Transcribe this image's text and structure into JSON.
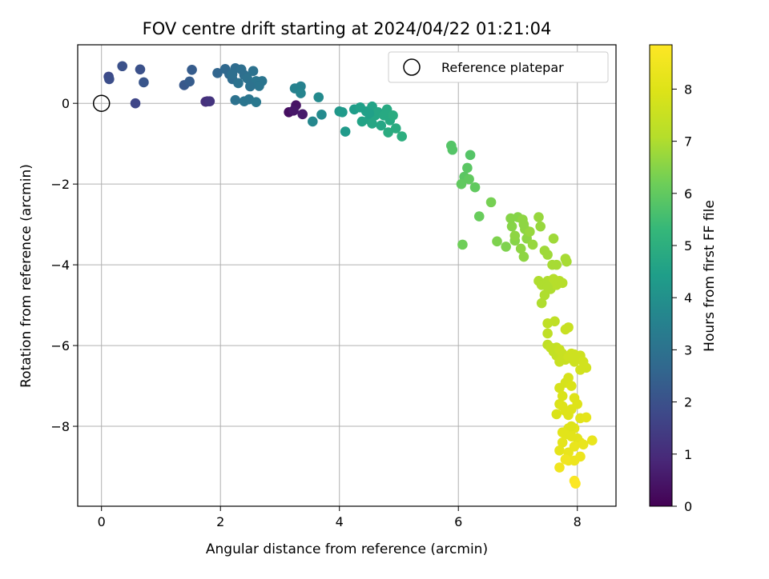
{
  "chart_data": {
    "type": "scatter",
    "title": "FOV centre drift starting at 2024/04/22 01:21:04",
    "xlabel": "Angular distance from reference (arcmin)",
    "ylabel": "Rotation from reference (arcmin)",
    "xlim": [
      -0.4,
      8.65
    ],
    "ylim": [
      -9.98,
      1.45
    ],
    "xticks": [
      0,
      2,
      4,
      6,
      8
    ],
    "yticks": [
      0,
      -2,
      -4,
      -6,
      -8
    ],
    "grid": true,
    "legend": {
      "placement": "top-right",
      "entries": [
        "Reference platepar"
      ]
    },
    "reference_point": {
      "x": 0,
      "y": 0,
      "label": "Reference platepar"
    },
    "colorbar": {
      "label": "Hours from first FF file",
      "colormap": "viridis",
      "range": [
        0,
        8.85
      ],
      "ticks": [
        0,
        1,
        2,
        3,
        4,
        5,
        6,
        7,
        8
      ]
    },
    "points": [
      [
        3.15,
        -0.22,
        0.3
      ],
      [
        3.27,
        -0.05,
        0.4
      ],
      [
        3.23,
        -0.18,
        0.5
      ],
      [
        3.38,
        -0.27,
        0.6
      ],
      [
        1.78,
        0.05,
        1.0
      ],
      [
        1.75,
        0.04,
        1.1
      ],
      [
        1.82,
        0.05,
        1.2
      ],
      [
        0.57,
        0.0,
        1.7
      ],
      [
        0.12,
        0.66,
        1.8
      ],
      [
        0.13,
        0.6,
        1.9
      ],
      [
        0.35,
        0.92,
        2.0
      ],
      [
        0.65,
        0.84,
        2.0
      ],
      [
        0.71,
        0.52,
        2.1
      ],
      [
        1.39,
        0.45,
        2.2
      ],
      [
        1.48,
        0.54,
        2.3
      ],
      [
        1.52,
        0.83,
        2.3
      ],
      [
        1.95,
        0.75,
        2.6
      ],
      [
        2.08,
        0.85,
        2.7
      ],
      [
        2.15,
        0.72,
        2.7
      ],
      [
        2.25,
        0.87,
        2.8
      ],
      [
        2.2,
        0.6,
        2.8
      ],
      [
        2.35,
        0.84,
        2.9
      ],
      [
        2.4,
        0.7,
        2.9
      ],
      [
        2.45,
        0.62,
        3.0
      ],
      [
        2.55,
        0.8,
        3.0
      ],
      [
        2.3,
        0.5,
        3.0
      ],
      [
        2.6,
        0.55,
        3.1
      ],
      [
        2.7,
        0.55,
        3.1
      ],
      [
        2.65,
        0.43,
        3.1
      ],
      [
        2.5,
        0.42,
        3.0
      ],
      [
        2.25,
        0.08,
        3.0
      ],
      [
        2.4,
        0.05,
        3.1
      ],
      [
        2.48,
        0.1,
        3.1
      ],
      [
        2.6,
        0.03,
        3.2
      ],
      [
        2.2,
        0.72,
        2.9
      ],
      [
        3.25,
        0.37,
        3.5
      ],
      [
        3.35,
        0.42,
        3.5
      ],
      [
        3.35,
        0.25,
        3.6
      ],
      [
        3.55,
        -0.45,
        3.7
      ],
      [
        3.65,
        0.15,
        3.8
      ],
      [
        3.7,
        -0.28,
        3.8
      ],
      [
        4.0,
        -0.2,
        4.2
      ],
      [
        4.05,
        -0.22,
        4.3
      ],
      [
        4.1,
        -0.7,
        4.3
      ],
      [
        4.25,
        -0.15,
        4.4
      ],
      [
        4.35,
        -0.1,
        4.5
      ],
      [
        4.45,
        -0.2,
        4.5
      ],
      [
        4.5,
        -0.4,
        4.6
      ],
      [
        4.38,
        -0.45,
        4.6
      ],
      [
        4.55,
        -0.08,
        4.6
      ],
      [
        4.6,
        -0.3,
        4.7
      ],
      [
        4.65,
        -0.22,
        4.7
      ],
      [
        4.55,
        -0.5,
        4.7
      ],
      [
        4.7,
        -0.55,
        4.7
      ],
      [
        4.75,
        -0.3,
        4.8
      ],
      [
        4.8,
        -0.15,
        4.8
      ],
      [
        4.85,
        -0.42,
        4.8
      ],
      [
        4.82,
        -0.72,
        4.9
      ],
      [
        4.9,
        -0.3,
        4.9
      ],
      [
        4.95,
        -0.62,
        4.9
      ],
      [
        5.05,
        -0.82,
        5.0
      ],
      [
        4.5,
        -0.25,
        4.5
      ],
      [
        5.88,
        -1.05,
        5.8
      ],
      [
        5.9,
        -1.15,
        5.8
      ],
      [
        6.2,
        -1.28,
        5.8
      ],
      [
        6.15,
        -1.6,
        5.9
      ],
      [
        6.1,
        -1.82,
        5.9
      ],
      [
        6.18,
        -1.88,
        6.0
      ],
      [
        6.05,
        -2.0,
        6.0
      ],
      [
        6.28,
        -2.08,
        6.0
      ],
      [
        6.35,
        -2.8,
        6.1
      ],
      [
        6.07,
        -3.5,
        6.2
      ],
      [
        6.55,
        -2.45,
        6.3
      ],
      [
        6.65,
        -3.42,
        6.4
      ],
      [
        6.8,
        -3.55,
        6.4
      ],
      [
        6.88,
        -2.85,
        6.5
      ],
      [
        6.9,
        -3.05,
        6.5
      ],
      [
        6.95,
        -3.4,
        6.5
      ],
      [
        7.0,
        -2.82,
        6.5
      ],
      [
        7.05,
        -3.6,
        6.6
      ],
      [
        7.08,
        -2.88,
        6.6
      ],
      [
        7.1,
        -3.8,
        6.6
      ],
      [
        7.12,
        -3.12,
        6.6
      ],
      [
        7.15,
        -3.35,
        6.6
      ],
      [
        7.2,
        -3.18,
        6.7
      ],
      [
        7.25,
        -3.5,
        6.7
      ],
      [
        7.35,
        -2.82,
        6.7
      ],
      [
        7.38,
        -3.05,
        6.7
      ],
      [
        6.95,
        -3.28,
        6.6
      ],
      [
        7.1,
        -3.0,
        6.6
      ],
      [
        7.45,
        -3.65,
        6.8
      ],
      [
        7.5,
        -3.75,
        6.8
      ],
      [
        7.6,
        -3.35,
        6.8
      ],
      [
        7.58,
        -4.0,
        6.9
      ],
      [
        7.65,
        -4.0,
        6.9
      ],
      [
        7.8,
        -3.85,
        6.9
      ],
      [
        7.82,
        -3.92,
        6.9
      ],
      [
        7.35,
        -4.4,
        7.0
      ],
      [
        7.4,
        -4.5,
        7.0
      ],
      [
        7.45,
        -4.75,
        7.0
      ],
      [
        7.4,
        -4.95,
        7.0
      ],
      [
        7.5,
        -4.4,
        7.0
      ],
      [
        7.55,
        -4.6,
        7.0
      ],
      [
        7.6,
        -4.35,
        7.1
      ],
      [
        7.65,
        -4.5,
        7.1
      ],
      [
        7.7,
        -4.4,
        7.1
      ],
      [
        7.75,
        -4.45,
        7.1
      ],
      [
        7.5,
        -4.55,
        7.0
      ],
      [
        7.5,
        -5.45,
        7.3
      ],
      [
        7.62,
        -5.4,
        7.3
      ],
      [
        7.5,
        -5.7,
        7.3
      ],
      [
        7.5,
        -5.98,
        7.3
      ],
      [
        7.55,
        -6.05,
        7.4
      ],
      [
        7.6,
        -6.15,
        7.4
      ],
      [
        7.65,
        -6.05,
        7.4
      ],
      [
        7.65,
        -6.25,
        7.4
      ],
      [
        7.7,
        -6.1,
        7.5
      ],
      [
        7.75,
        -6.2,
        7.5
      ],
      [
        7.8,
        -5.6,
        7.5
      ],
      [
        7.85,
        -5.55,
        7.5
      ],
      [
        7.8,
        -6.35,
        7.5
      ],
      [
        7.85,
        -6.28,
        7.6
      ],
      [
        7.9,
        -6.2,
        7.6
      ],
      [
        7.95,
        -6.22,
        7.6
      ],
      [
        8.0,
        -6.3,
        7.6
      ],
      [
        8.05,
        -6.25,
        7.6
      ],
      [
        8.1,
        -6.4,
        7.7
      ],
      [
        8.15,
        -6.55,
        7.7
      ],
      [
        8.05,
        -6.6,
        7.7
      ],
      [
        7.95,
        -6.4,
        7.6
      ],
      [
        7.7,
        -6.4,
        7.5
      ],
      [
        7.7,
        -7.05,
        7.8
      ],
      [
        7.8,
        -6.92,
        7.8
      ],
      [
        7.85,
        -6.8,
        7.8
      ],
      [
        7.9,
        -7.0,
        7.9
      ],
      [
        7.75,
        -7.25,
        7.9
      ],
      [
        7.7,
        -7.45,
        7.9
      ],
      [
        7.65,
        -7.7,
        7.9
      ],
      [
        7.75,
        -7.5,
        8.0
      ],
      [
        7.8,
        -7.62,
        8.0
      ],
      [
        7.85,
        -7.72,
        8.0
      ],
      [
        7.9,
        -7.58,
        8.0
      ],
      [
        7.95,
        -7.3,
        8.0
      ],
      [
        8.0,
        -7.45,
        8.0
      ],
      [
        7.85,
        -8.05,
        8.0
      ],
      [
        7.8,
        -8.2,
        8.1
      ],
      [
        7.75,
        -8.15,
        8.1
      ],
      [
        7.9,
        -8.25,
        8.1
      ],
      [
        7.95,
        -8.05,
        8.1
      ],
      [
        8.0,
        -8.3,
        8.1
      ],
      [
        8.05,
        -7.8,
        8.1
      ],
      [
        8.15,
        -7.78,
        8.2
      ],
      [
        8.05,
        -8.4,
        8.2
      ],
      [
        7.75,
        -8.4,
        8.2
      ],
      [
        7.7,
        -8.6,
        8.2
      ],
      [
        7.85,
        -8.65,
        8.3
      ],
      [
        7.95,
        -8.5,
        8.3
      ],
      [
        8.1,
        -8.45,
        8.3
      ],
      [
        8.25,
        -8.35,
        8.3
      ],
      [
        7.85,
        -8.85,
        8.4
      ],
      [
        7.95,
        -8.85,
        8.4
      ],
      [
        8.05,
        -8.75,
        8.4
      ],
      [
        7.7,
        -9.02,
        8.5
      ],
      [
        7.8,
        -8.82,
        8.5
      ],
      [
        7.95,
        -9.35,
        8.7
      ],
      [
        7.97,
        -9.42,
        8.8
      ],
      [
        7.9,
        -8.0,
        8.0
      ]
    ]
  }
}
